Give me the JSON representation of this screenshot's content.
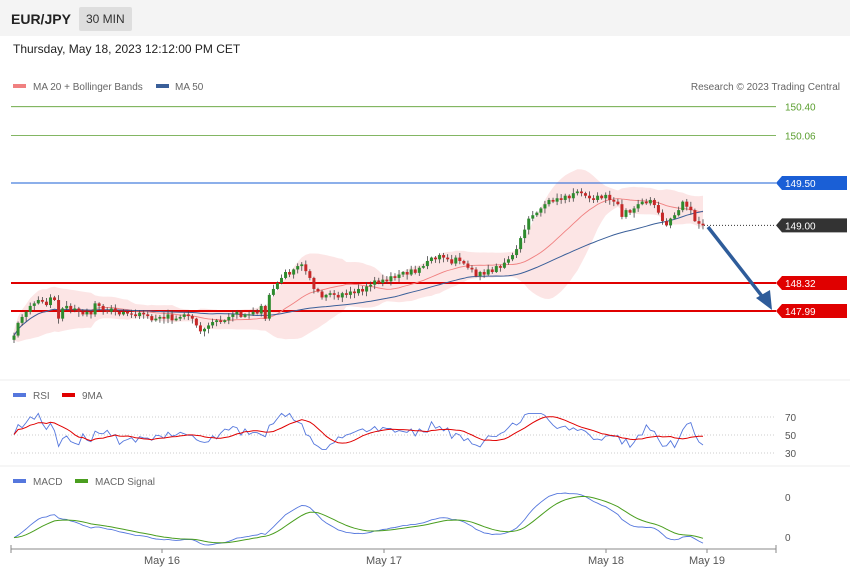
{
  "header": {
    "symbol": "EUR/JPY",
    "timeframe": "30 MIN",
    "datetime": "Thursday, May 18, 2023 12:12:00 PM CET"
  },
  "legend": {
    "ma20": "MA 20 + Bollinger Bands",
    "ma50": "MA 50",
    "credit": "Research © 2023 Trading Central",
    "ma20_color": "#f08080",
    "ma50_color": "#3a5f99"
  },
  "chart_data": [
    {
      "type": "candlestick",
      "ylim": [
        147.5,
        150.6
      ],
      "xlabels": [
        "May 16",
        "May 17",
        "May 18",
        "May 19"
      ],
      "levels": [
        {
          "value": 150.4,
          "label": "150.40",
          "color": "#5a9e2f",
          "kind": "target"
        },
        {
          "value": 150.06,
          "label": "150.06",
          "color": "#5a9e2f",
          "kind": "target"
        },
        {
          "value": 149.5,
          "label": "149.50",
          "color": "#1a5fd6",
          "kind": "resistance"
        },
        {
          "value": 149.0,
          "label": "149.00",
          "color": "#333333",
          "kind": "last"
        },
        {
          "value": 148.32,
          "label": "148.32",
          "color": "#e00000",
          "kind": "support"
        },
        {
          "value": 147.99,
          "label": "147.99",
          "color": "#e00000",
          "kind": "support"
        }
      ],
      "closes": [
        147.7,
        147.85,
        147.92,
        147.98,
        148.05,
        148.08,
        148.12,
        148.1,
        148.06,
        148.15,
        148.12,
        147.9,
        148.02,
        148.05,
        148.0,
        148.02,
        147.98,
        147.95,
        147.98,
        147.95,
        148.08,
        148.05,
        148.0,
        147.98,
        148.02,
        147.98,
        147.95,
        147.98,
        147.96,
        147.95,
        147.93,
        147.97,
        147.95,
        147.93,
        147.88,
        147.9,
        147.92,
        147.9,
        147.95,
        147.88,
        147.9,
        147.92,
        147.95,
        147.93,
        147.9,
        147.82,
        147.75,
        147.78,
        147.82,
        147.86,
        147.88,
        147.86,
        147.88,
        147.92,
        147.95,
        147.98,
        147.92,
        147.95,
        147.95,
        147.98,
        147.96,
        148.05,
        147.9,
        148.18,
        148.25,
        148.32,
        148.38,
        148.45,
        148.42,
        148.48,
        148.52,
        148.54,
        148.46,
        148.38,
        148.25,
        148.22,
        148.15,
        148.18,
        148.2,
        148.18,
        148.15,
        148.2,
        148.18,
        148.22,
        148.2,
        148.25,
        148.22,
        148.28,
        148.3,
        148.35,
        148.32,
        148.36,
        148.34,
        148.4,
        148.38,
        148.42,
        148.45,
        148.42,
        148.48,
        148.44,
        148.5,
        148.52,
        148.58,
        148.62,
        148.6,
        148.65,
        148.62,
        148.6,
        148.55,
        148.62,
        148.58,
        148.55,
        148.5,
        148.48,
        148.4,
        148.45,
        148.42,
        148.48,
        148.45,
        148.52,
        148.5,
        148.56,
        148.6,
        148.65,
        148.72,
        148.85,
        148.95,
        149.08,
        149.12,
        149.15,
        149.2,
        149.25,
        149.3,
        149.28,
        149.32,
        149.3,
        149.35,
        149.32,
        149.38,
        149.4,
        149.38,
        149.35,
        149.32,
        149.3,
        149.35,
        149.32,
        149.36,
        149.3,
        149.28,
        149.25,
        149.1,
        149.18,
        149.15,
        149.2,
        149.25,
        149.28,
        149.26,
        149.3,
        149.24,
        149.15,
        149.05,
        149.0,
        149.08,
        149.12,
        149.18,
        149.28,
        149.22,
        149.18,
        149.05,
        149.02,
        149.0
      ]
    },
    {
      "type": "line",
      "name": "RSI",
      "signal_name": "9MA",
      "ticks": [
        70,
        50,
        30
      ],
      "ylim": [
        25,
        78
      ],
      "rsi_color": "#5577dd",
      "signal_color": "#e00000"
    },
    {
      "type": "line",
      "name": "MACD",
      "signal_name": "MACD Signal",
      "ticks": [
        "0",
        "0"
      ],
      "macd_color": "#5577dd",
      "signal_color": "#4a9e1f"
    }
  ]
}
